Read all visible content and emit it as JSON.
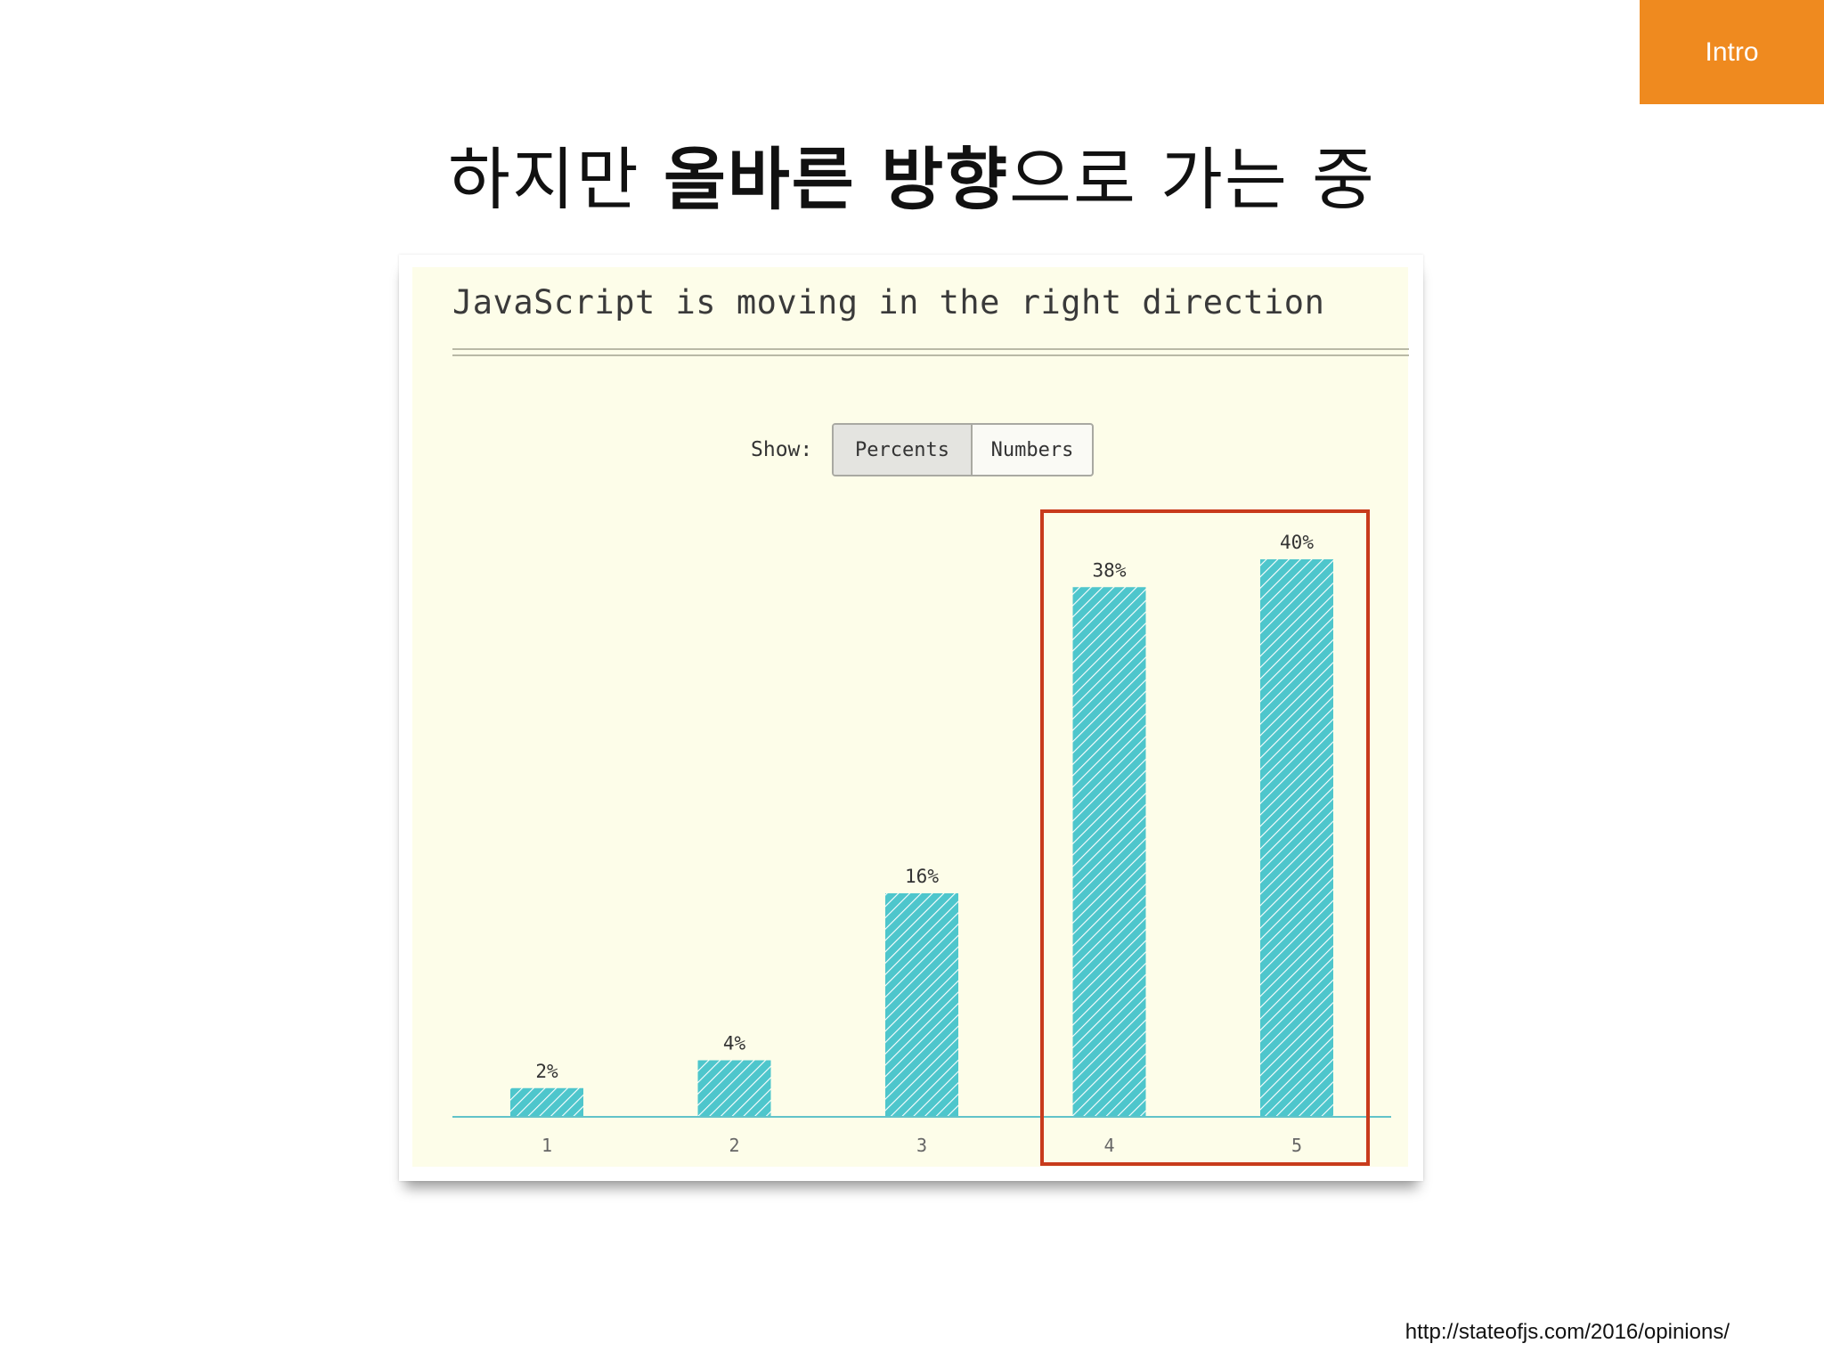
{
  "section_tab": "Intro",
  "slide_title": {
    "part1": "하지만 ",
    "bold": "올바른 방향",
    "part2": "으로 가는 중"
  },
  "chart_toggle": {
    "label": "Show:",
    "options": [
      "Percents",
      "Numbers"
    ],
    "selected": "Percents"
  },
  "source": "http://stateofjs.com/2016/opinions/",
  "colors": {
    "bar": "#4ec6cc",
    "hatch": "#ffffff",
    "highlight": "#c83b1c",
    "accent": "#ef8a1f",
    "chart_bg": "#fdfde9"
  },
  "chart_data": {
    "type": "bar",
    "title": "JavaScript is moving in the right direction",
    "categories": [
      "1",
      "2",
      "3",
      "4",
      "5"
    ],
    "values": [
      2,
      4,
      16,
      38,
      40
    ],
    "value_labels": [
      "2%",
      "4%",
      "16%",
      "38%",
      "40%"
    ],
    "highlighted_categories": [
      "4",
      "5"
    ],
    "grid": false
  }
}
